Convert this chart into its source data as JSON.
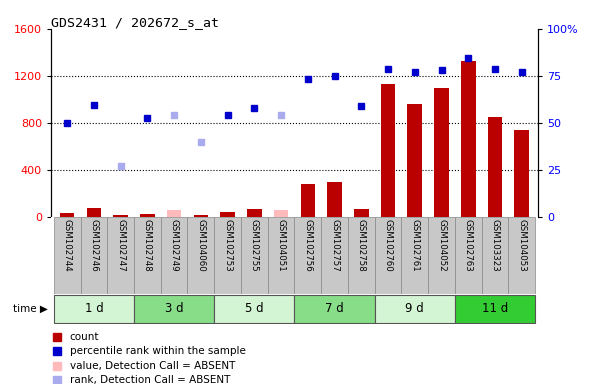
{
  "title": "GDS2431 / 202672_s_at",
  "samples": [
    "GSM102744",
    "GSM102746",
    "GSM102747",
    "GSM102748",
    "GSM102749",
    "GSM104060",
    "GSM102753",
    "GSM102755",
    "GSM104051",
    "GSM102756",
    "GSM102757",
    "GSM102758",
    "GSM102760",
    "GSM102761",
    "GSM104052",
    "GSM102763",
    "GSM103323",
    "GSM104053"
  ],
  "groups": [
    {
      "label": "1 d",
      "indices": [
        0,
        1,
        2
      ],
      "color": "#d4f5d4"
    },
    {
      "label": "3 d",
      "indices": [
        3,
        4,
        5
      ],
      "color": "#88dd88"
    },
    {
      "label": "5 d",
      "indices": [
        6,
        7,
        8
      ],
      "color": "#d4f5d4"
    },
    {
      "label": "7 d",
      "indices": [
        9,
        10,
        11
      ],
      "color": "#88dd88"
    },
    {
      "label": "9 d",
      "indices": [
        12,
        13,
        14
      ],
      "color": "#d4f5d4"
    },
    {
      "label": "11 d",
      "indices": [
        15,
        16,
        17
      ],
      "color": "#33cc33"
    }
  ],
  "count_values": [
    30,
    75,
    20,
    25,
    60,
    20,
    40,
    65,
    60,
    280,
    300,
    70,
    1130,
    960,
    1100,
    1330,
    850,
    740
  ],
  "absent_count_values": [
    null,
    null,
    null,
    null,
    60,
    null,
    null,
    null,
    60,
    null,
    null,
    null,
    null,
    null,
    null,
    null,
    null,
    null
  ],
  "rank_values": [
    800,
    950,
    null,
    840,
    null,
    null,
    870,
    930,
    null,
    1175,
    1200,
    940,
    1260,
    1230,
    1250,
    1350,
    1260,
    1230
  ],
  "absent_rank_values": [
    null,
    null,
    430,
    null,
    870,
    640,
    null,
    null,
    870,
    null,
    null,
    null,
    null,
    null,
    null,
    null,
    null,
    null
  ],
  "ylim_left": [
    0,
    1600
  ],
  "ylim_right": [
    0,
    100
  ],
  "yticks_left": [
    0,
    400,
    800,
    1200,
    1600
  ],
  "yticks_right": [
    0,
    25,
    50,
    75,
    100
  ],
  "grid_values": [
    400,
    800,
    1200
  ],
  "bar_color": "#bb0000",
  "absent_bar_color": "#ffbbbb",
  "rank_color": "#0000cc",
  "absent_rank_color": "#aaaaee",
  "sample_col_color": "#c8c8c8",
  "sample_col_edge": "#888888"
}
